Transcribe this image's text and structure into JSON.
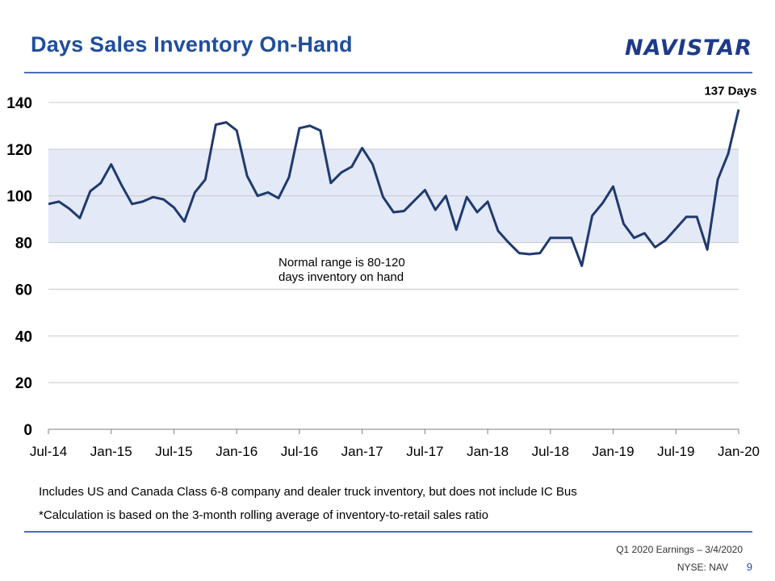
{
  "page": {
    "title": "Days Sales Inventory On-Hand",
    "logo_text": "NAVISTAR",
    "footnote1": "Includes US and Canada Class 6-8 company and dealer truck inventory, but does not include IC Bus",
    "footnote2": "*Calculation is based on the 3-month rolling average of inventory-to-retail sales ratio",
    "footer_date": "Q1 2020 Earnings – 3/4/2020",
    "footer_ticker": "NYSE: NAV",
    "page_number": "9"
  },
  "colors": {
    "title": "#1f4e9c",
    "line": "#1f3a6e",
    "band": "#e3e9f7",
    "rule": "#4a6fb5"
  },
  "chart_data": {
    "type": "line",
    "title": "",
    "xlabel": "",
    "ylabel": "",
    "ylim": [
      0,
      140
    ],
    "y_ticks": [
      "0",
      "20",
      "40",
      "60",
      "80",
      "100",
      "120",
      "140"
    ],
    "x_ticks": [
      "Jul-14",
      "Jan-15",
      "Jul-15",
      "Jan-16",
      "Jul-16",
      "Jan-17",
      "Jul-17",
      "Jan-18",
      "Jul-18",
      "Jan-19",
      "Jul-19",
      "Jan-20"
    ],
    "grid": true,
    "shaded_band": [
      80,
      120
    ],
    "annotations": {
      "normal_range_line1": "Normal range is 80-120",
      "normal_range_line2": "days inventory on hand",
      "last_value": "137 Days"
    },
    "series": [
      {
        "values": [
          96.5,
          97.5,
          94.5,
          90.5,
          102,
          105.5,
          113.5,
          104.5,
          96.5,
          97.5,
          99.5,
          98.5,
          95,
          89,
          101.5,
          107,
          130.5,
          131.5,
          128,
          108.5,
          100,
          101.5,
          99,
          108,
          129,
          130,
          128,
          105.5,
          110,
          112.5,
          120.5,
          113.5,
          99.5,
          93,
          93.5,
          98,
          102.5,
          94,
          100,
          85.5,
          99.5,
          93,
          97.5,
          85,
          80,
          75.5,
          75,
          75.5,
          82,
          82,
          82,
          70,
          91.5,
          97,
          104,
          88,
          82,
          84,
          78,
          81,
          86,
          91,
          91,
          77,
          107,
          118,
          137
        ]
      }
    ]
  }
}
